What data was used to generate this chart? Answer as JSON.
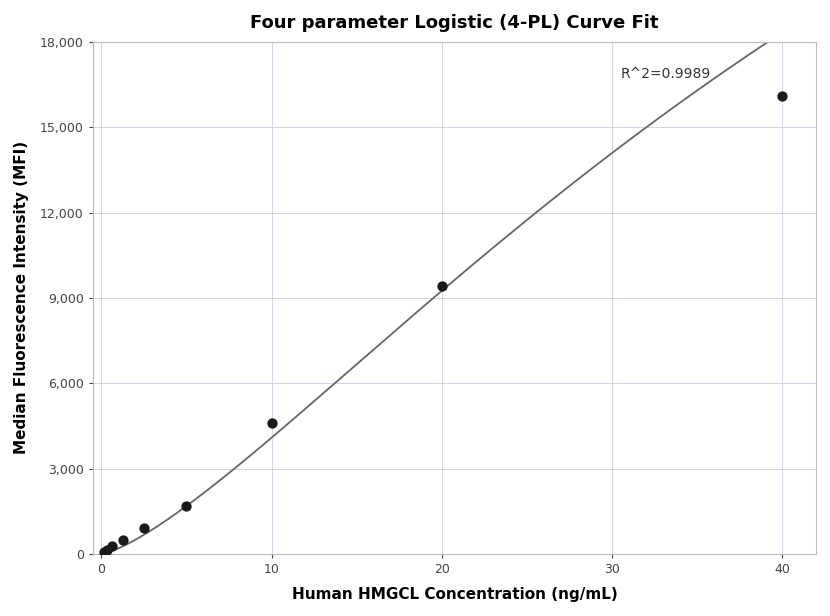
{
  "title": "Four parameter Logistic (4-PL) Curve Fit",
  "xlabel": "Human HMGCL Concentration (ng/mL)",
  "ylabel": "Median Fluorescence Intensity (MFI)",
  "r_squared": "R^2=0.9989",
  "scatter_x": [
    0.156,
    0.313,
    0.625,
    1.25,
    2.5,
    5.0,
    10.0,
    20.0,
    40.0
  ],
  "scatter_y": [
    55,
    150,
    280,
    500,
    900,
    1700,
    4600,
    9400,
    16100
  ],
  "xlim": [
    -0.5,
    42
  ],
  "ylim": [
    0,
    18000
  ],
  "yticks": [
    0,
    3000,
    6000,
    9000,
    12000,
    15000,
    18000
  ],
  "xticks": [
    0,
    10,
    20,
    30,
    40
  ],
  "background_color": "#ffffff",
  "grid_color": "#d0d8e8",
  "line_color": "#666666",
  "dot_color": "#1a1a1a",
  "title_fontsize": 13,
  "label_fontsize": 11,
  "annotation_fontsize": 10
}
